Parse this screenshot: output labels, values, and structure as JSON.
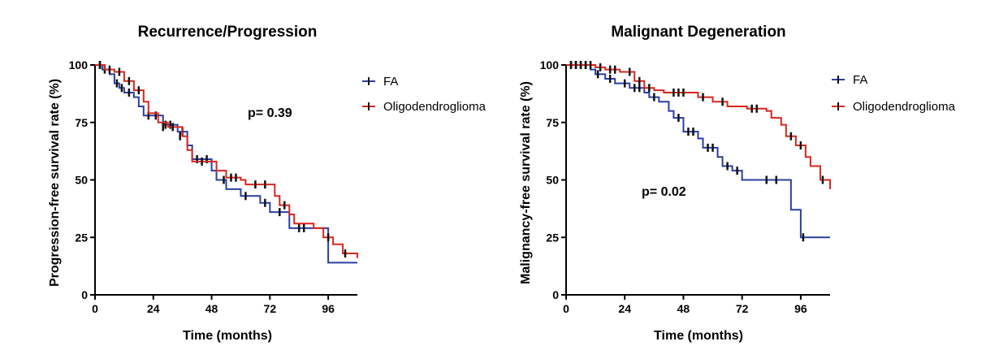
{
  "chart_data": [
    {
      "type": "line",
      "title": "Recurrence/Progression",
      "xlabel": "Time (months)",
      "ylabel": "Progression-free survival rate (%)",
      "xlim": [
        0,
        108
      ],
      "ylim": [
        0,
        100
      ],
      "xticks": [
        "0",
        "24",
        "48",
        "72",
        "96"
      ],
      "yticks": [
        "0",
        "25",
        "50",
        "75",
        "100"
      ],
      "legend_position": "top-right",
      "annotation": "p= 0.39",
      "series": [
        {
          "name": "FA",
          "color": "#2b3fa3",
          "steps": [
            [
              0,
              100
            ],
            [
              3,
              98
            ],
            [
              6,
              96
            ],
            [
              8,
              92
            ],
            [
              10,
              90
            ],
            [
              12,
              88
            ],
            [
              16,
              86
            ],
            [
              18,
              82
            ],
            [
              20,
              78
            ],
            [
              28,
              74
            ],
            [
              34,
              71
            ],
            [
              38,
              65
            ],
            [
              40,
              59
            ],
            [
              44,
              59
            ],
            [
              48,
              54
            ],
            [
              50,
              50
            ],
            [
              54,
              46
            ],
            [
              60,
              43
            ],
            [
              66,
              43
            ],
            [
              68,
              40
            ],
            [
              72,
              36
            ],
            [
              78,
              36
            ],
            [
              80,
              29
            ],
            [
              86,
              29
            ],
            [
              96,
              14
            ],
            [
              108,
              14
            ]
          ],
          "censor": [
            [
              2,
              100
            ],
            [
              4,
              98
            ],
            [
              9,
              92
            ],
            [
              11,
              90
            ],
            [
              14,
              88
            ],
            [
              22,
              78
            ],
            [
              25,
              78
            ],
            [
              29,
              74
            ],
            [
              31,
              74
            ],
            [
              36,
              71
            ],
            [
              42,
              59
            ],
            [
              46,
              59
            ],
            [
              53,
              50
            ],
            [
              62,
              43
            ],
            [
              70,
              40
            ],
            [
              76,
              36
            ],
            [
              84,
              29
            ]
          ]
        },
        {
          "name": "Oligodendroglioma",
          "color": "#d9261e",
          "steps": [
            [
              0,
              100
            ],
            [
              4,
              98
            ],
            [
              8,
              97
            ],
            [
              12,
              93
            ],
            [
              16,
              89
            ],
            [
              20,
              84
            ],
            [
              22,
              79
            ],
            [
              26,
              75
            ],
            [
              30,
              73
            ],
            [
              36,
              69
            ],
            [
              38,
              63
            ],
            [
              40,
              58
            ],
            [
              46,
              58
            ],
            [
              50,
              54
            ],
            [
              54,
              51
            ],
            [
              60,
              50
            ],
            [
              62,
              48
            ],
            [
              72,
              48
            ],
            [
              74,
              43
            ],
            [
              76,
              39
            ],
            [
              80,
              35
            ],
            [
              82,
              31
            ],
            [
              90,
              29
            ],
            [
              94,
              25
            ],
            [
              98,
              22
            ],
            [
              102,
              18
            ],
            [
              108,
              16
            ]
          ],
          "censor": [
            [
              2,
              100
            ],
            [
              6,
              98
            ],
            [
              10,
              97
            ],
            [
              14,
              93
            ],
            [
              18,
              89
            ],
            [
              28,
              73
            ],
            [
              32,
              73
            ],
            [
              35,
              69
            ],
            [
              44,
              58
            ],
            [
              56,
              51
            ],
            [
              58,
              51
            ],
            [
              66,
              48
            ],
            [
              70,
              48
            ],
            [
              78,
              39
            ],
            [
              86,
              29
            ],
            [
              96,
              25
            ],
            [
              103,
              18
            ]
          ]
        }
      ]
    },
    {
      "type": "line",
      "title": "Malignant Degeneration",
      "xlabel": "Time (months)",
      "ylabel": "Malignancy-free survival rate (%)",
      "xlim": [
        0,
        108
      ],
      "ylim": [
        0,
        100
      ],
      "xticks": [
        "0",
        "24",
        "48",
        "72",
        "96"
      ],
      "yticks": [
        "0",
        "25",
        "50",
        "75",
        "100"
      ],
      "legend_position": "top-right",
      "annotation": "p= 0.02",
      "series": [
        {
          "name": "FA",
          "color": "#2b3fa3",
          "steps": [
            [
              0,
              100
            ],
            [
              10,
              98
            ],
            [
              12,
              96
            ],
            [
              16,
              94
            ],
            [
              20,
              92
            ],
            [
              26,
              90
            ],
            [
              32,
              88
            ],
            [
              34,
              86
            ],
            [
              38,
              84
            ],
            [
              42,
              80
            ],
            [
              44,
              77
            ],
            [
              48,
              71
            ],
            [
              54,
              68
            ],
            [
              56,
              64
            ],
            [
              62,
              60
            ],
            [
              64,
              56
            ],
            [
              68,
              54
            ],
            [
              72,
              50
            ],
            [
              92,
              37
            ],
            [
              96,
              25
            ],
            [
              108,
              25
            ]
          ],
          "censor": [
            [
              2,
              100
            ],
            [
              4,
              100
            ],
            [
              6,
              100
            ],
            [
              8,
              100
            ],
            [
              13,
              96
            ],
            [
              18,
              94
            ],
            [
              24,
              92
            ],
            [
              28,
              90
            ],
            [
              30,
              90
            ],
            [
              36,
              86
            ],
            [
              46,
              77
            ],
            [
              50,
              71
            ],
            [
              52,
              71
            ],
            [
              58,
              64
            ],
            [
              60,
              64
            ],
            [
              66,
              56
            ],
            [
              70,
              54
            ],
            [
              82,
              50
            ],
            [
              86,
              50
            ],
            [
              97,
              25
            ]
          ]
        },
        {
          "name": "Oligodendroglioma",
          "color": "#d9261e",
          "steps": [
            [
              0,
              100
            ],
            [
              12,
              99
            ],
            [
              16,
              98
            ],
            [
              22,
              97
            ],
            [
              28,
              93
            ],
            [
              32,
              90
            ],
            [
              36,
              89
            ],
            [
              40,
              88
            ],
            [
              54,
              86
            ],
            [
              60,
              84
            ],
            [
              66,
              82
            ],
            [
              74,
              81
            ],
            [
              82,
              80
            ],
            [
              84,
              77
            ],
            [
              88,
              74
            ],
            [
              90,
              69
            ],
            [
              94,
              65
            ],
            [
              98,
              60
            ],
            [
              100,
              56
            ],
            [
              104,
              50
            ],
            [
              108,
              46
            ]
          ],
          "censor": [
            [
              2,
              100
            ],
            [
              4,
              100
            ],
            [
              6,
              100
            ],
            [
              8,
              100
            ],
            [
              10,
              100
            ],
            [
              14,
              99
            ],
            [
              18,
              98
            ],
            [
              20,
              98
            ],
            [
              26,
              97
            ],
            [
              30,
              93
            ],
            [
              34,
              90
            ],
            [
              44,
              88
            ],
            [
              46,
              88
            ],
            [
              48,
              88
            ],
            [
              56,
              86
            ],
            [
              64,
              84
            ],
            [
              76,
              81
            ],
            [
              78,
              81
            ],
            [
              92,
              69
            ],
            [
              96,
              65
            ],
            [
              105,
              50
            ]
          ]
        }
      ]
    }
  ]
}
